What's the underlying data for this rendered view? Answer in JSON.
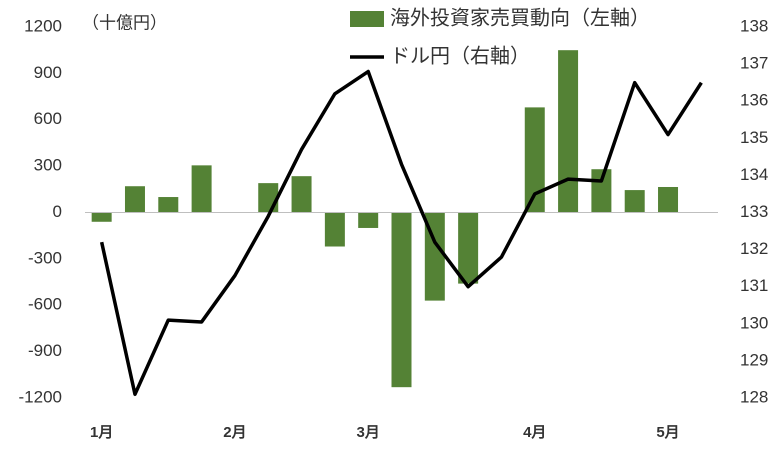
{
  "chart_data": {
    "type": "bar-line",
    "unit_label": "（十億円）",
    "categories": [
      "1月",
      null,
      null,
      null,
      "2月",
      null,
      null,
      null,
      "3月",
      null,
      null,
      null,
      null,
      "4月",
      null,
      null,
      null,
      "5月",
      null
    ],
    "series": [
      {
        "name": "海外投資家売買動向（左軸）",
        "type": "bar",
        "color": "#548235",
        "values": [
          -60,
          170,
          100,
          305,
          0,
          190,
          235,
          -220,
          -100,
          -1130,
          -570,
          -460,
          0,
          680,
          1050,
          280,
          145,
          165,
          null
        ]
      },
      {
        "name": "ドル円（右軸）",
        "type": "line",
        "axis": "y2",
        "color": "#000000",
        "values": [
          132.2,
          128.1,
          130.1,
          130.05,
          131.3,
          132.9,
          134.7,
          136.2,
          136.8,
          134.3,
          132.2,
          131.0,
          131.8,
          133.5,
          133.9,
          133.85,
          136.5,
          135.1,
          136.5
        ]
      }
    ],
    "ylim": [
      -1200,
      1200
    ],
    "yticks": [
      -1200,
      -900,
      -600,
      -300,
      0,
      300,
      600,
      900,
      1200
    ],
    "y2lim": [
      128,
      138
    ],
    "y2ticks": [
      128,
      129,
      130,
      131,
      132,
      133,
      134,
      135,
      136,
      137,
      138
    ]
  }
}
